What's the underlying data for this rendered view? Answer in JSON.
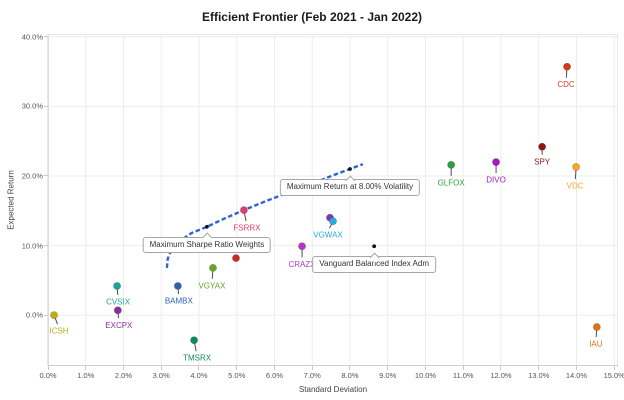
{
  "chart_data": {
    "type": "scatter",
    "title": "Efficient Frontier (Feb 2021 - Jan 2022)",
    "xlabel": "Standard Deviation",
    "ylabel": "Expected Return",
    "xlim": [
      0,
      15.1
    ],
    "ylim": [
      -7.3,
      40.4
    ],
    "grid": true,
    "background": "#ffffff",
    "gridline_color": "#ededed",
    "axis_line_color": "#cfcfcf",
    "x_ticks": [
      {
        "value": 0,
        "label": "0.0%"
      },
      {
        "value": 1,
        "label": "1.0%"
      },
      {
        "value": 2,
        "label": "2.0%"
      },
      {
        "value": 3,
        "label": "3.0%"
      },
      {
        "value": 4,
        "label": "4.0%"
      },
      {
        "value": 5,
        "label": "5.0%"
      },
      {
        "value": 6,
        "label": "6.0%"
      },
      {
        "value": 7,
        "label": "7.0%"
      },
      {
        "value": 8,
        "label": "8.0%"
      },
      {
        "value": 9,
        "label": "9.0%"
      },
      {
        "value": 10,
        "label": "10.0%"
      },
      {
        "value": 11,
        "label": "11.0%"
      },
      {
        "value": 12,
        "label": "12.0%"
      },
      {
        "value": 13,
        "label": "13.0%"
      },
      {
        "value": 14,
        "label": "14.0%"
      },
      {
        "value": 15,
        "label": "15.0%"
      }
    ],
    "y_ticks": [
      {
        "value": 0,
        "label": "0.0%"
      },
      {
        "value": 10,
        "label": "10.0%"
      },
      {
        "value": 20,
        "label": "20.0%"
      },
      {
        "value": 30,
        "label": "30.0%"
      },
      {
        "value": 40,
        "label": "40.0%"
      }
    ],
    "points": [
      {
        "name": "ICSH",
        "label": "ICSH",
        "x": 0.16,
        "y": 0.0,
        "color": "#bfae14",
        "label_offset": [
          5,
          15
        ]
      },
      {
        "name": "EXCPX",
        "label": "EXCPX",
        "x": 1.85,
        "y": 0.7,
        "color": "#8c2f96",
        "label_offset": [
          1,
          14
        ]
      },
      {
        "name": "CVSIX",
        "label": "CVSIX",
        "x": 1.83,
        "y": 4.2,
        "color": "#1aa39b",
        "label_offset": [
          1,
          15
        ]
      },
      {
        "name": "BAMBX",
        "label": "BAMBX",
        "x": 3.44,
        "y": 4.2,
        "color": "#3161ae",
        "label_offset": [
          1,
          14
        ]
      },
      {
        "name": "VGYAX",
        "label": "VGYAX",
        "x": 4.37,
        "y": 6.8,
        "color": "#68a528",
        "label_offset": [
          -1,
          17
        ]
      },
      {
        "name": "TMSRX",
        "label": "TMSRX",
        "x": 3.87,
        "y": -3.6,
        "color": "#108a5a",
        "label_offset": [
          3,
          17
        ]
      },
      {
        "name": "FSRRX",
        "label": "FSRRX",
        "x": 5.19,
        "y": 15.1,
        "color": "#e03a72",
        "label_offset": [
          3,
          17
        ]
      },
      {
        "name": "unlabeled-red",
        "label": "",
        "x": 4.98,
        "y": 8.2,
        "color": "#c92b22",
        "label_offset": [
          0,
          0
        ]
      },
      {
        "name": "unlabeled-purple",
        "label": "",
        "x": 7.47,
        "y": 14.0,
        "color": "#8a35ab",
        "label_offset": [
          0,
          0
        ]
      },
      {
        "name": "VGWAX",
        "label": "VGWAX",
        "x": 7.55,
        "y": 13.5,
        "color": "#29acdd",
        "label_offset": [
          -5,
          13
        ]
      },
      {
        "name": "CRAZX",
        "label": "CRAZX",
        "x": 6.73,
        "y": 9.9,
        "color": "#b13ac1",
        "label_offset": [
          0,
          17
        ]
      },
      {
        "name": "GLFOX",
        "label": "GLFOX",
        "x": 10.68,
        "y": 21.6,
        "color": "#2f9e41",
        "label_offset": [
          0,
          17
        ]
      },
      {
        "name": "DIVO",
        "label": "DIVO",
        "x": 11.87,
        "y": 22.0,
        "color": "#a816c6",
        "label_offset": [
          0,
          17
        ]
      },
      {
        "name": "SPY",
        "label": "SPY",
        "x": 13.09,
        "y": 24.2,
        "color": "#8d1616",
        "label_offset": [
          0,
          14
        ]
      },
      {
        "name": "CDC",
        "label": "CDC",
        "x": 13.75,
        "y": 35.7,
        "color": "#d13d17",
        "label_offset": [
          -1,
          17
        ]
      },
      {
        "name": "VDC",
        "label": "VDC",
        "x": 13.99,
        "y": 21.3,
        "color": "#f4a820",
        "label_offset": [
          -1,
          18
        ]
      },
      {
        "name": "IAU",
        "label": "IAU",
        "x": 14.54,
        "y": -1.7,
        "color": "#e2711d",
        "label_offset": [
          -1,
          16
        ]
      }
    ],
    "frontier": {
      "label": "Efficient Frontier",
      "color": "#2e62d6",
      "dashed": true,
      "points": [
        [
          3.15,
          6.8
        ],
        [
          3.17,
          8.1
        ],
        [
          3.27,
          9.4
        ],
        [
          3.48,
          10.6
        ],
        [
          3.8,
          11.8
        ],
        [
          4.21,
          12.7
        ],
        [
          4.68,
          13.9
        ],
        [
          5.19,
          15.1
        ],
        [
          5.78,
          16.4
        ],
        [
          6.4,
          17.7
        ],
        [
          7.0,
          18.9
        ],
        [
          7.6,
          20.2
        ],
        [
          8.0,
          21.0
        ],
        [
          8.34,
          21.7
        ]
      ]
    },
    "reference_markers": [
      {
        "name": "max-sharpe-point",
        "x": 4.21,
        "y": 12.7
      },
      {
        "name": "max-return-8pct-point",
        "x": 8.0,
        "y": 21.0
      },
      {
        "name": "vanguard-balanced-point",
        "x": 8.64,
        "y": 9.9
      }
    ],
    "annotations": [
      {
        "name": "max-sharpe",
        "text": "Maximum Sharpe Ratio Weights",
        "x": 4.21,
        "y": 12.7
      },
      {
        "name": "max-return-8pct",
        "text": "Maximum Return at 8.00% Volatility",
        "x": 8.0,
        "y": 21.0
      },
      {
        "name": "vanguard-balanced",
        "text": "Vanguard Balanced Index Adm",
        "x": 8.64,
        "y": 9.9
      }
    ]
  }
}
